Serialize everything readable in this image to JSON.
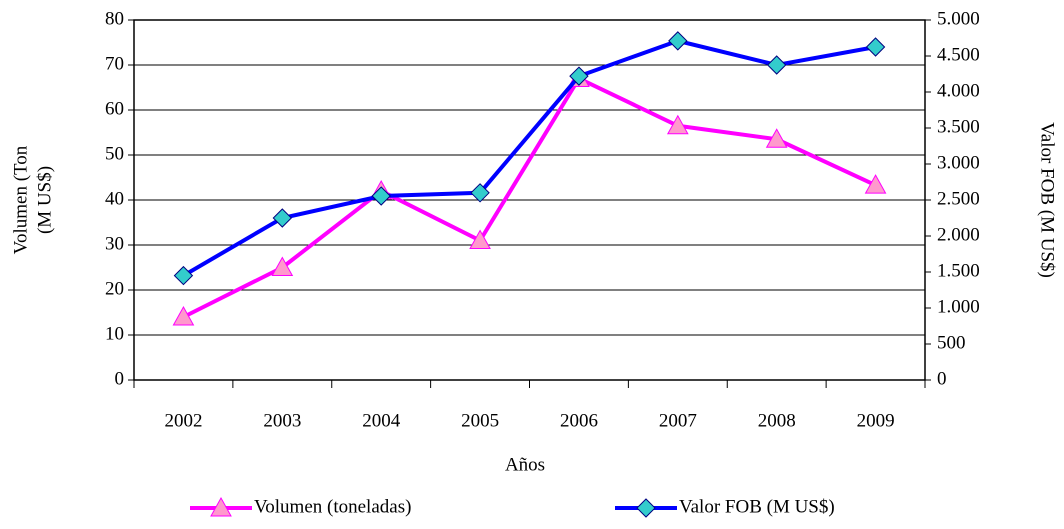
{
  "chart_data": {
    "type": "line",
    "x_label": "Años",
    "y_label": [
      "Volumen (Ton",
      "(M US$)"
    ],
    "y2_label": "Valor FOB (M US$)",
    "categories": [
      "2002",
      "2003",
      "2004",
      "2005",
      "2006",
      "2007",
      "2008",
      "2009"
    ],
    "series": [
      {
        "name": "Volumen (toneladas)",
        "color": "#ff00ff",
        "marker_fill": "#ff99cc",
        "marker": "triangle",
        "values": [
          14,
          25,
          42,
          31,
          67,
          56.5,
          53.5,
          43.3
        ]
      },
      {
        "name": "Valor FOB (M US$)",
        "color": "#0000ff",
        "marker_fill": "#33cccc",
        "marker": "diamond",
        "axis": "y2",
        "values": [
          1450,
          2250,
          2555,
          2600,
          4220,
          4710,
          4375,
          4625
        ]
      }
    ],
    "ylim": [
      0,
      80
    ],
    "yticks": [
      0,
      10,
      20,
      30,
      40,
      50,
      60,
      70,
      80
    ],
    "y2lim": [
      0,
      5000
    ],
    "y2ticks": [
      0,
      500,
      {
        "value": 1000,
        "label": "1.000"
      },
      {
        "value": 1500,
        "label": "1.500"
      },
      {
        "value": 2000,
        "label": "2.000"
      },
      {
        "value": 2500,
        "label": "2.500"
      },
      {
        "value": 3000,
        "label": "3.000"
      },
      {
        "value": 3500,
        "label": "3.500"
      },
      {
        "value": 4000,
        "label": "4.000"
      },
      {
        "value": 4500,
        "label": "4.500"
      },
      {
        "value": 5000,
        "label": "5.000"
      }
    ],
    "grid": true,
    "legend": "bottom"
  }
}
